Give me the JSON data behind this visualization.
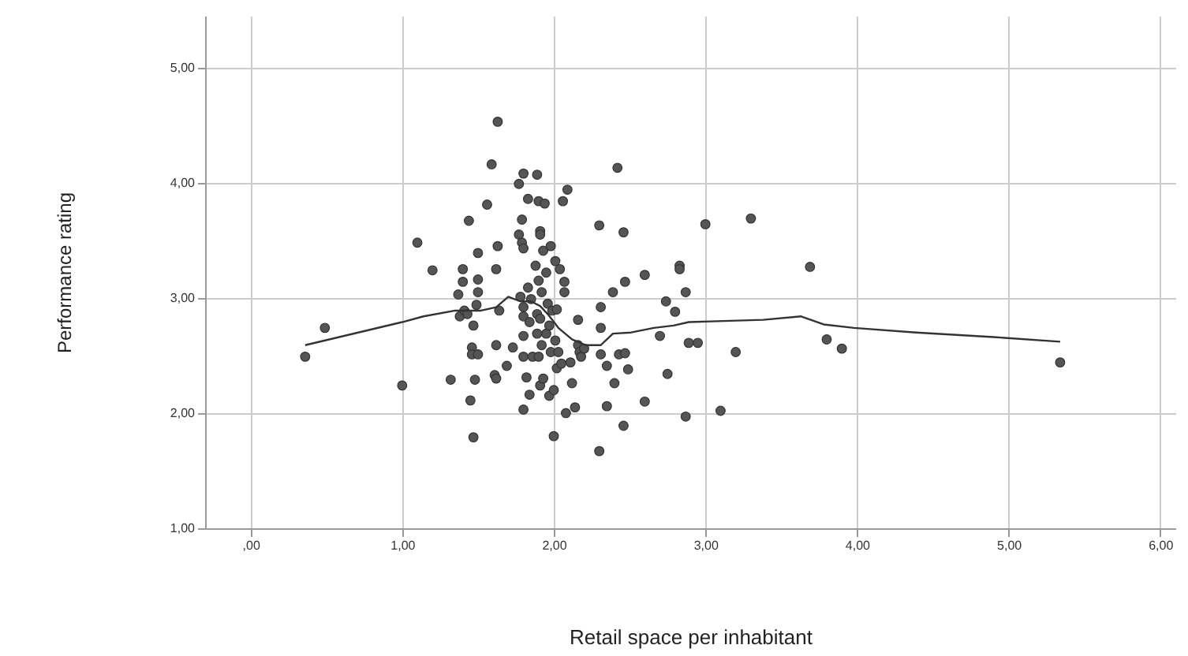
{
  "chart_data": {
    "type": "scatter",
    "xlabel": "Retail space per inhabitant",
    "ylabel": "Performance rating",
    "xlim": [
      -0.3,
      6.1
    ],
    "ylim": [
      1,
      5.45
    ],
    "xticks": [
      {
        "value": 0,
        "label": ",00"
      },
      {
        "value": 1,
        "label": "1,00"
      },
      {
        "value": 2,
        "label": "2,00"
      },
      {
        "value": 3,
        "label": "3,00"
      },
      {
        "value": 4,
        "label": "4,00"
      },
      {
        "value": 5,
        "label": "5,00"
      },
      {
        "value": 6,
        "label": "6,00"
      }
    ],
    "yticks": [
      {
        "value": 1,
        "label": "1,00"
      },
      {
        "value": 2,
        "label": "2,00"
      },
      {
        "value": 3,
        "label": "3,00"
      },
      {
        "value": 4,
        "label": "4,00"
      },
      {
        "value": 5,
        "label": "5,00"
      }
    ],
    "grid": true,
    "series": [
      {
        "color": "#555555",
        "marker": "circle",
        "x": [
          0.36,
          0.49,
          1.0,
          1.1,
          1.2,
          1.32,
          1.37,
          1.4,
          1.4,
          1.38,
          1.41,
          1.43,
          1.44,
          1.45,
          1.46,
          1.46,
          1.47,
          1.47,
          1.48,
          1.49,
          1.5,
          1.5,
          1.5,
          1.5,
          1.56,
          1.59,
          1.61,
          1.62,
          1.62,
          1.62,
          1.63,
          1.63,
          1.64,
          1.69,
          1.73,
          1.77,
          1.77,
          1.79,
          1.79,
          1.8,
          1.8,
          1.78,
          1.8,
          1.8,
          1.8,
          1.8,
          1.8,
          1.82,
          1.83,
          1.83,
          1.84,
          1.84,
          1.85,
          1.86,
          1.88,
          1.89,
          1.89,
          1.89,
          1.9,
          1.9,
          1.9,
          1.91,
          1.91,
          1.91,
          1.91,
          1.92,
          1.92,
          1.93,
          1.93,
          1.94,
          1.95,
          1.95,
          1.96,
          1.97,
          1.97,
          1.98,
          1.98,
          1.99,
          2.0,
          2.0,
          2.01,
          2.01,
          2.02,
          2.02,
          2.03,
          2.04,
          2.05,
          2.06,
          2.07,
          2.07,
          2.08,
          2.09,
          2.11,
          2.12,
          2.14,
          2.16,
          2.16,
          2.17,
          2.18,
          2.2,
          2.3,
          2.3,
          2.31,
          2.31,
          2.31,
          2.35,
          2.35,
          2.39,
          2.4,
          2.42,
          2.43,
          2.46,
          2.46,
          2.47,
          2.47,
          2.49,
          2.6,
          2.6,
          2.7,
          2.74,
          2.75,
          2.8,
          2.83,
          2.83,
          2.87,
          2.87,
          2.89,
          2.95,
          3.0,
          3.1,
          3.2,
          3.3,
          3.69,
          3.8,
          3.9,
          5.34
        ],
        "values": [
          2.49,
          2.74,
          2.24,
          3.48,
          3.24,
          2.29,
          3.03,
          3.25,
          3.14,
          2.84,
          2.89,
          2.86,
          3.67,
          2.11,
          2.57,
          2.51,
          1.79,
          2.76,
          2.29,
          2.94,
          2.51,
          3.05,
          3.16,
          3.39,
          3.81,
          4.16,
          2.33,
          2.3,
          2.59,
          3.25,
          3.45,
          4.53,
          2.89,
          2.41,
          2.57,
          3.99,
          3.55,
          3.48,
          3.68,
          4.08,
          3.43,
          3.01,
          2.92,
          2.84,
          2.67,
          2.49,
          2.03,
          2.31,
          3.09,
          3.86,
          2.79,
          2.16,
          2.99,
          2.49,
          3.28,
          2.69,
          2.86,
          4.07,
          3.84,
          3.15,
          2.49,
          3.58,
          3.55,
          2.24,
          2.82,
          2.59,
          3.05,
          3.41,
          2.3,
          3.82,
          2.69,
          3.22,
          2.95,
          2.15,
          2.76,
          2.53,
          3.45,
          2.89,
          1.8,
          2.2,
          3.32,
          2.63,
          2.39,
          2.9,
          2.53,
          3.25,
          2.43,
          3.84,
          3.05,
          3.14,
          2.0,
          3.94,
          2.44,
          2.26,
          2.05,
          2.81,
          2.59,
          2.53,
          2.49,
          2.56,
          1.67,
          3.63,
          2.74,
          2.92,
          2.51,
          2.41,
          2.06,
          3.05,
          2.26,
          4.13,
          2.51,
          3.57,
          1.89,
          3.14,
          2.52,
          2.38,
          2.1,
          3.2,
          2.67,
          2.97,
          2.34,
          2.88,
          3.28,
          3.25,
          1.97,
          3.05,
          2.61,
          2.61,
          3.64,
          2.02,
          2.53,
          3.69,
          3.27,
          2.64,
          2.56,
          2.44
        ]
      },
      {
        "type": "line",
        "marker": "none",
        "color": "#333333",
        "x": [
          0.36,
          1.0,
          1.14,
          1.35,
          1.52,
          1.62,
          1.7,
          1.78,
          1.85,
          1.91,
          1.96,
          2.03,
          2.12,
          2.21,
          2.31,
          2.39,
          2.51,
          2.66,
          2.79,
          2.89,
          3.12,
          3.38,
          3.63,
          3.78,
          3.98,
          4.39,
          4.9,
          5.34
        ],
        "values": [
          2.59,
          2.79,
          2.84,
          2.89,
          2.89,
          2.92,
          3.01,
          2.97,
          2.97,
          2.93,
          2.86,
          2.74,
          2.64,
          2.59,
          2.59,
          2.69,
          2.7,
          2.74,
          2.76,
          2.79,
          2.8,
          2.81,
          2.84,
          2.77,
          2.74,
          2.7,
          2.66,
          2.62
        ]
      }
    ]
  }
}
